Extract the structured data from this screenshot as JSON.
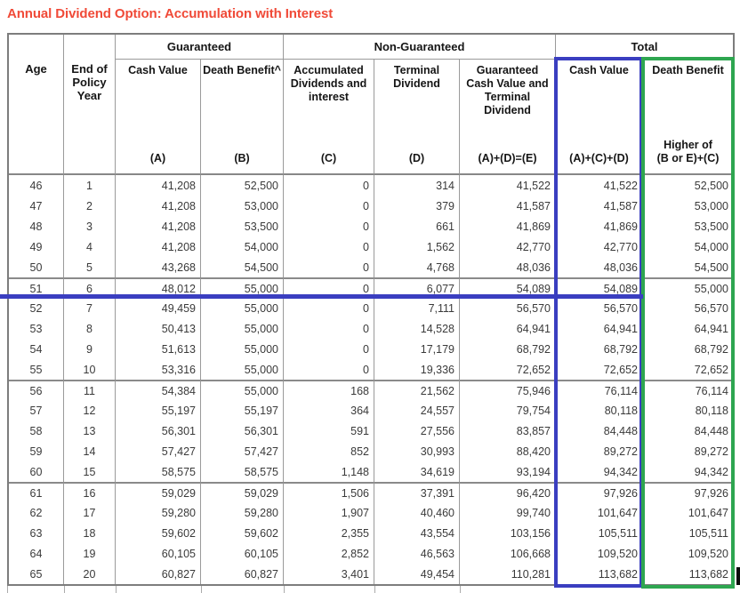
{
  "title": "Annual Dividend Option: Accumulation with Interest",
  "colors": {
    "title_red": "#F04A38",
    "highlight_blue": "#3A3EC0",
    "highlight_green": "#2EA650"
  },
  "table": {
    "groups": {
      "guaranteed": "Guaranteed",
      "non_guaranteed": "Non-Guaranteed",
      "total": "Total"
    },
    "columns": [
      {
        "label": "Age",
        "formula": ""
      },
      {
        "label": "End of Policy Year",
        "formula": ""
      },
      {
        "label": "Cash Value",
        "formula": "(A)"
      },
      {
        "label": "Death Benefit^",
        "formula": "(B)"
      },
      {
        "label": "Accumulated Dividends and interest",
        "formula": "(C)"
      },
      {
        "label": "Terminal Dividend",
        "formula": "(D)"
      },
      {
        "label": "Guaranteed Cash Value and Terminal Dividend",
        "formula": "(A)+(D)=(E)"
      },
      {
        "label": "Cash Value",
        "formula": "(A)+(C)+(D)"
      },
      {
        "label": "Death Benefit",
        "formula": "Higher of\n(B or E)+(C)"
      }
    ],
    "rows": [
      [
        "46",
        "1",
        "41,208",
        "52,500",
        "0",
        "314",
        "41,522",
        "41,522",
        "52,500"
      ],
      [
        "47",
        "2",
        "41,208",
        "53,000",
        "0",
        "379",
        "41,587",
        "41,587",
        "53,000"
      ],
      [
        "48",
        "3",
        "41,208",
        "53,500",
        "0",
        "661",
        "41,869",
        "41,869",
        "53,500"
      ],
      [
        "49",
        "4",
        "41,208",
        "54,000",
        "0",
        "1,562",
        "42,770",
        "42,770",
        "54,000"
      ],
      [
        "50",
        "5",
        "43,268",
        "54,500",
        "0",
        "4,768",
        "48,036",
        "48,036",
        "54,500"
      ],
      [
        "51",
        "6",
        "48,012",
        "55,000",
        "0",
        "6,077",
        "54,089",
        "54,089",
        "55,000"
      ],
      [
        "52",
        "7",
        "49,459",
        "55,000",
        "0",
        "7,111",
        "56,570",
        "56,570",
        "56,570"
      ],
      [
        "53",
        "8",
        "50,413",
        "55,000",
        "0",
        "14,528",
        "64,941",
        "64,941",
        "64,941"
      ],
      [
        "54",
        "9",
        "51,613",
        "55,000",
        "0",
        "17,179",
        "68,792",
        "68,792",
        "68,792"
      ],
      [
        "55",
        "10",
        "53,316",
        "55,000",
        "0",
        "19,336",
        "72,652",
        "72,652",
        "72,652"
      ],
      [
        "56",
        "11",
        "54,384",
        "55,000",
        "168",
        "21,562",
        "75,946",
        "76,114",
        "76,114"
      ],
      [
        "57",
        "12",
        "55,197",
        "55,197",
        "364",
        "24,557",
        "79,754",
        "80,118",
        "80,118"
      ],
      [
        "58",
        "13",
        "56,301",
        "56,301",
        "591",
        "27,556",
        "83,857",
        "84,448",
        "84,448"
      ],
      [
        "59",
        "14",
        "57,427",
        "57,427",
        "852",
        "30,993",
        "88,420",
        "89,272",
        "89,272"
      ],
      [
        "60",
        "15",
        "58,575",
        "58,575",
        "1,148",
        "34,619",
        "93,194",
        "94,342",
        "94,342"
      ],
      [
        "61",
        "16",
        "59,029",
        "59,029",
        "1,506",
        "37,391",
        "96,420",
        "97,926",
        "97,926"
      ],
      [
        "62",
        "17",
        "59,280",
        "59,280",
        "1,907",
        "40,460",
        "99,740",
        "101,647",
        "101,647"
      ],
      [
        "63",
        "18",
        "59,602",
        "59,602",
        "2,355",
        "43,554",
        "103,156",
        "105,511",
        "105,511"
      ],
      [
        "64",
        "19",
        "60,105",
        "60,105",
        "2,852",
        "46,563",
        "106,668",
        "109,520",
        "109,520"
      ],
      [
        "65",
        "20",
        "60,827",
        "60,827",
        "3,401",
        "49,454",
        "110,281",
        "113,682",
        "113,682"
      ]
    ],
    "group_start_row_indices": [
      5,
      10,
      15
    ],
    "highlighted_row_age": "51"
  }
}
